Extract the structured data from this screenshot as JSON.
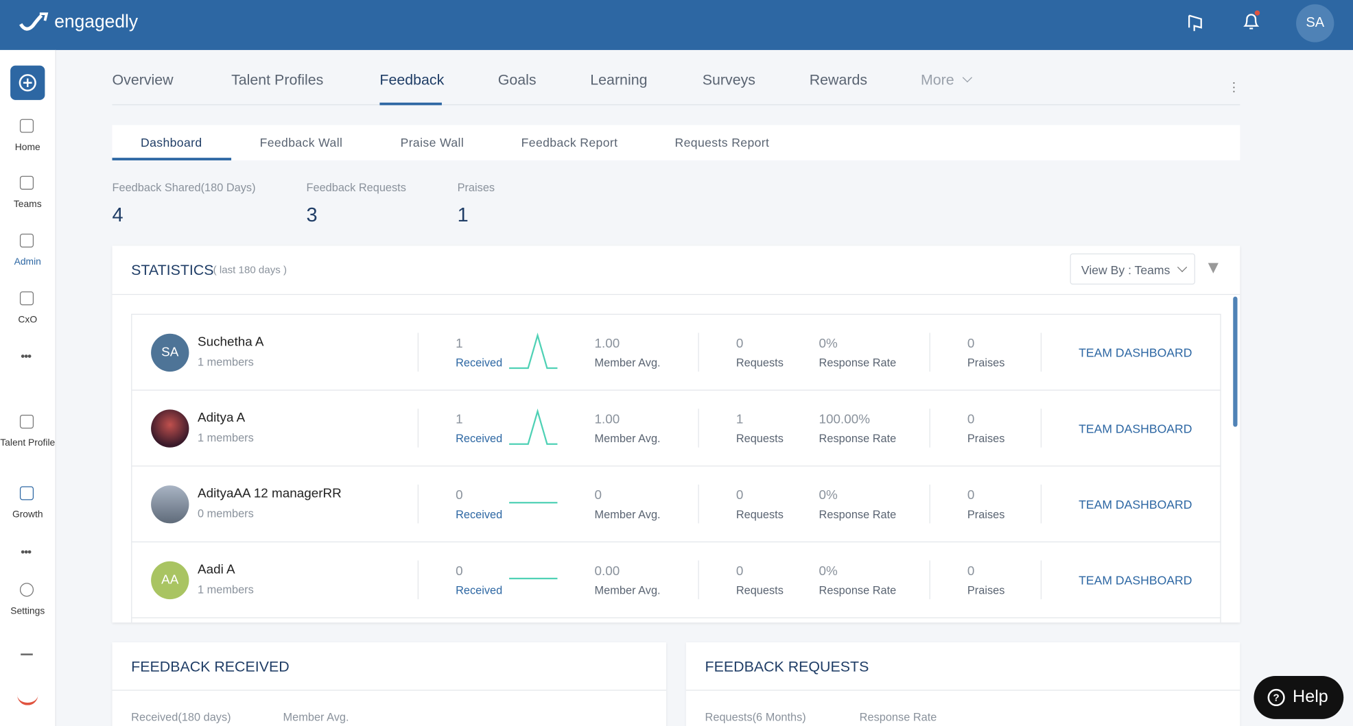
{
  "header": {
    "brand": "engagedly",
    "avatar": "SA"
  },
  "sidebar": [
    "Home",
    "Teams",
    "Admin",
    "CxO",
    "Talent Profile",
    "Growth",
    "Settings"
  ],
  "tabs": [
    "Overview",
    "Talent Profiles",
    "Feedback",
    "Goals",
    "Learning",
    "Surveys",
    "Rewards",
    "More"
  ],
  "subtabs": [
    "Dashboard",
    "Feedback Wall",
    "Praise Wall",
    "Feedback Report",
    "Requests Report"
  ],
  "summary": [
    {
      "label": "Feedback Shared(180 Days)",
      "value": 4
    },
    {
      "label": "Feedback Requests",
      "value": 3
    },
    {
      "label": "Praises",
      "value": 1
    }
  ],
  "statistics": {
    "title": "STATISTICS",
    "subtitle": "( last 180 days )",
    "view_by": "View By : Teams",
    "labels": {
      "received": "Received",
      "member_avg": "Member Avg.",
      "requests": "Requests",
      "response_rate": "Response Rate",
      "praises": "Praises",
      "action": "TEAM DASHBOARD"
    },
    "rows": [
      {
        "name": "Suchetha A",
        "members": "1 members",
        "initials": "SA",
        "received": 1,
        "member_avg": "1.00",
        "requests": 0,
        "response_rate": "0%",
        "praises": 0
      },
      {
        "name": "Aditya A",
        "members": "1 members",
        "received": 1,
        "member_avg": "1.00",
        "requests": 1,
        "response_rate": "100.00%",
        "praises": 0
      },
      {
        "name": "AdityaAA 12 managerRR",
        "members": "0 members",
        "received": 0,
        "member_avg": "0",
        "requests": 0,
        "response_rate": "0%",
        "praises": 0
      },
      {
        "name": "Aadi A",
        "members": "1 members",
        "initials": "AA",
        "received": 0,
        "member_avg": "0.00",
        "requests": 0,
        "response_rate": "0%",
        "praises": 0
      }
    ]
  },
  "panels": [
    {
      "title": "FEEDBACK RECEIVED",
      "labels": [
        "Received(180 days)",
        "Member Avg."
      ]
    },
    {
      "title": "FEEDBACK REQUESTS",
      "labels": [
        "Requests(6 Months)",
        "Response Rate"
      ]
    }
  ],
  "help": "Help"
}
